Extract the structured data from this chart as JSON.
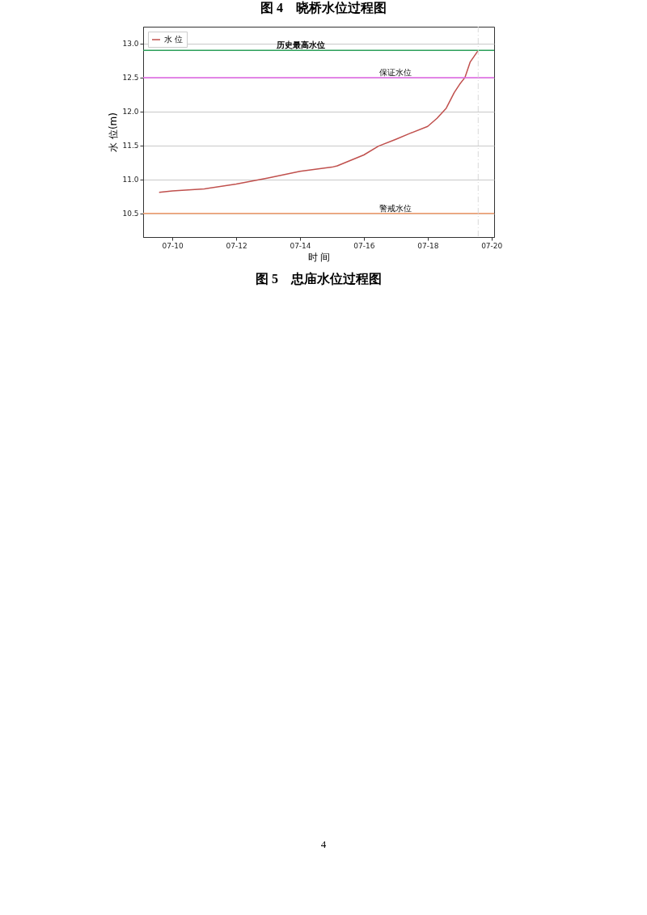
{
  "chart_data": {
    "type": "line",
    "title": "图 5　忠庙水位过程图",
    "xlabel": "时 间",
    "ylabel": "水 位(m)",
    "annotations": [
      "图 4　晓桥水位过程图",
      "4"
    ],
    "x": [
      "--07-09T14:00",
      "--07-10T00:00",
      "--07-11T00:00",
      "--07-12T00:00",
      "--07-13T00:00",
      "--07-14T00:00",
      "--07-15T00:00",
      "--07-15T04:00",
      "--07-16T00:00",
      "--07-16T11:00",
      "--07-17T00:00",
      "--07-17T11:00",
      "--07-18T00:00",
      "--07-18T07:00",
      "--07-18T14:00",
      "--07-18T20:00",
      "--07-19T00:00",
      "--07-19T04:00",
      "--07-19T08:00",
      "--07-19T14:00"
    ],
    "series": [
      {
        "name": "水 位",
        "color": "#c0504d",
        "values": [
          10.81,
          10.83,
          10.86,
          10.93,
          11.02,
          11.12,
          11.18,
          11.2,
          11.36,
          11.49,
          11.59,
          11.68,
          11.78,
          11.9,
          12.05,
          12.28,
          12.4,
          12.5,
          12.73,
          12.9
        ]
      }
    ],
    "xlim": [
      "--07-09T02:00",
      "--07-20T02:00"
    ],
    "xticks": [
      {
        "value": "--07-10",
        "label": "07-10"
      },
      {
        "value": "--07-12",
        "label": "07-12"
      },
      {
        "value": "--07-14",
        "label": "07-14"
      },
      {
        "value": "--07-16",
        "label": "07-16"
      },
      {
        "value": "--07-18",
        "label": "07-18"
      },
      {
        "value": "--07-20",
        "label": "07-20"
      }
    ],
    "ylim": [
      10.15,
      13.25
    ],
    "yticks": [
      {
        "value": 10.5,
        "label": "10.5"
      },
      {
        "value": 11,
        "label": "11.0"
      },
      {
        "value": 11.5,
        "label": "11.5"
      },
      {
        "value": 12,
        "label": "12.0"
      },
      {
        "value": 12.5,
        "label": "12.5"
      },
      {
        "value": 13,
        "label": "13.0"
      }
    ],
    "ref_lines": [
      {
        "axis": "y",
        "value": 12.9,
        "label": "历史最高水位",
        "color": "#2ca05a"
      },
      {
        "axis": "y",
        "value": 12.5,
        "label": "保证水位",
        "color": "#e066e6"
      },
      {
        "axis": "y",
        "value": 10.5,
        "label": "警戒水位",
        "color": "#f4a070"
      },
      {
        "axis": "x",
        "value": "--07-19T14:00",
        "color": "#d8d8d8",
        "line_style": "dashdot"
      }
    ],
    "grid": "y",
    "legend": "top left"
  }
}
